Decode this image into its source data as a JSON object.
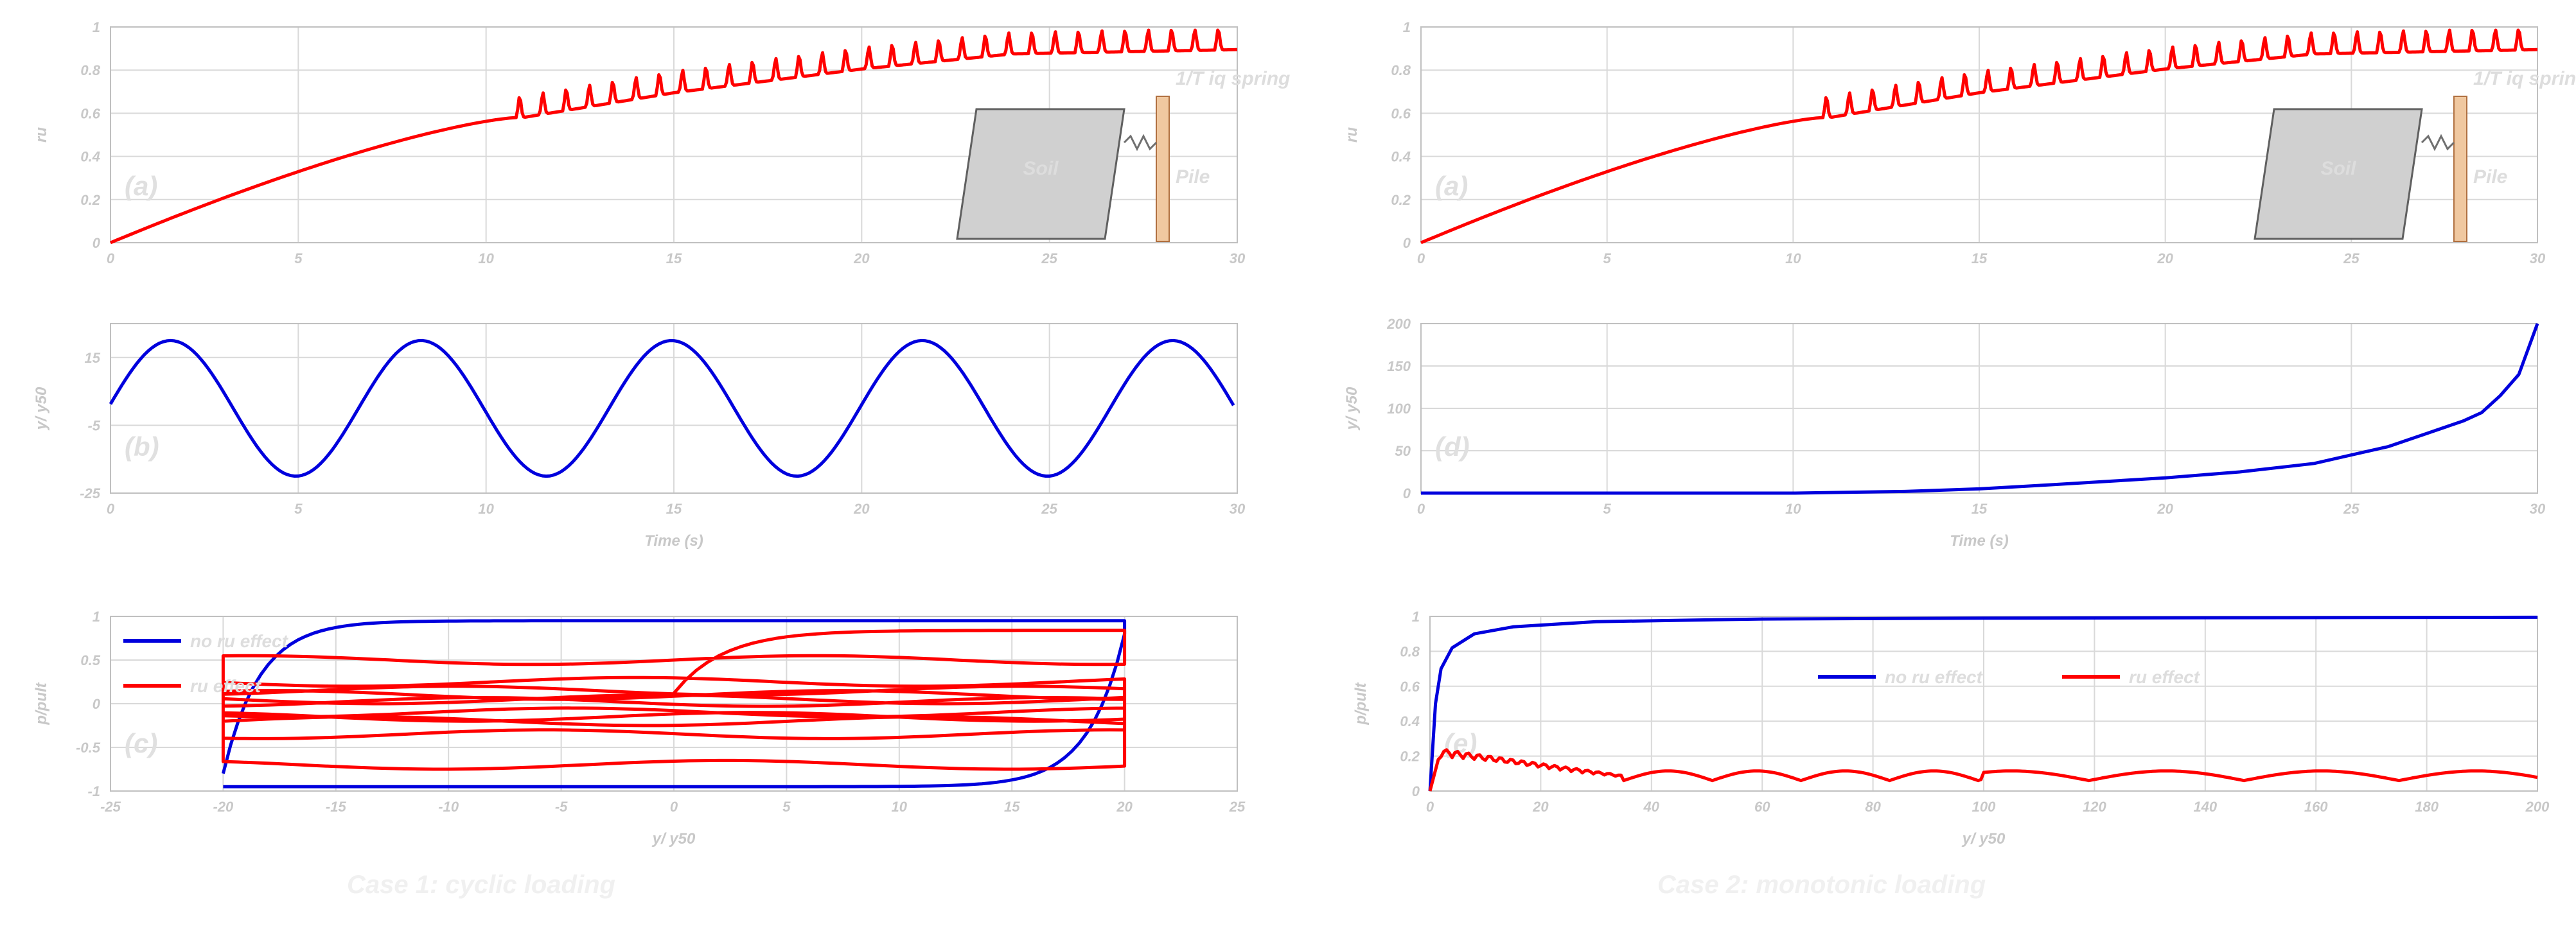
{
  "figure": {
    "case1_title": "Case 1: cyclic loading",
    "case2_title": "Case 2: monotonic loading"
  },
  "inset": {
    "spring_label": "1/T iq spring",
    "soil_label": "Soil",
    "pile_label": "Pile"
  },
  "colors": {
    "ru": "#ff0000",
    "disp": "#0000dd",
    "noru": "#0000dd",
    "grid": "#d9d9d9"
  },
  "chart_data": [
    {
      "id": "a",
      "type": "line",
      "panel_tag": "(a)",
      "xlabel": "",
      "ylabel": "ru",
      "xlim": [
        0,
        30
      ],
      "ylim": [
        0,
        1
      ],
      "xticks": [
        0,
        5,
        10,
        15,
        20,
        25,
        30
      ],
      "yticks": [
        0,
        0.2,
        0.4,
        0.6,
        0.8,
        1
      ],
      "ytick_labels": [
        "0",
        "0.2",
        "0.4",
        "0.6",
        "0.8",
        "1"
      ],
      "series": [
        {
          "style": "ru",
          "kind": "ru_cyclic",
          "monotonic_rise": {
            "x_end": 10.8,
            "y_end": 0.58
          },
          "cyclic": {
            "x_start": 10.8,
            "x_end": 30,
            "period": 0.62,
            "amplitude": 0.05,
            "envelope": [
              [
                10.8,
                0.6
              ],
              [
                15,
                0.72
              ],
              [
                20,
                0.83
              ],
              [
                24,
                0.9
              ],
              [
                30,
                0.92
              ]
            ]
          }
        }
      ]
    },
    {
      "id": "b",
      "type": "line",
      "panel_tag": "(b)",
      "xlabel": "Time (s)",
      "ylabel": "y/ y50",
      "xlim": [
        0,
        30
      ],
      "ylim": [
        -25,
        25
      ],
      "xticks": [
        0,
        5,
        10,
        15,
        20,
        25,
        30
      ],
      "yticks": [
        -25,
        -5,
        15
      ],
      "ytick_labels": [
        "-25",
        "-5",
        "15"
      ],
      "series": [
        {
          "style": "disp",
          "kind": "sine",
          "amplitude": 20,
          "period": 6.67,
          "phase_x": 1.6,
          "x_range": [
            0,
            30
          ]
        }
      ]
    },
    {
      "id": "c",
      "type": "line",
      "panel_tag": "(c)",
      "xlabel": "y/ y50",
      "ylabel": "p/pult",
      "xlim": [
        -25,
        25
      ],
      "ylim": [
        -1,
        1
      ],
      "xticks": [
        -25,
        -20,
        -15,
        -10,
        -5,
        0,
        5,
        10,
        15,
        20,
        25
      ],
      "yticks": [
        -1,
        -0.5,
        0,
        0.5,
        1
      ],
      "ytick_labels": [
        "-1",
        "-0.5",
        "0",
        "0.5",
        "1"
      ],
      "legend": {
        "position": "top-left",
        "entries": [
          {
            "label": "no ru effect",
            "style": "noru"
          },
          {
            "label": "ru effect",
            "style": "ru"
          }
        ]
      },
      "series": [
        {
          "style": "noru",
          "kind": "hysteresis_noru"
        },
        {
          "style": "ru",
          "kind": "hysteresis_ru",
          "levels": [
            0.5,
            -0.7,
            0.25,
            -0.35,
            0.15,
            -0.2,
            0.1,
            -0.15,
            0.05,
            -0.1,
            0.02
          ]
        }
      ]
    },
    {
      "id": "d",
      "type": "line",
      "panel_tag": "(a)",
      "xlabel": "",
      "ylabel": "ru",
      "xlim": [
        0,
        30
      ],
      "ylim": [
        0,
        1
      ],
      "xticks": [
        0,
        5,
        10,
        15,
        20,
        25,
        30
      ],
      "yticks": [
        0,
        0.2,
        0.4,
        0.6,
        0.8,
        1
      ],
      "ytick_labels": [
        "0",
        "0.2",
        "0.4",
        "0.6",
        "0.8",
        "1"
      ],
      "series": [
        {
          "style": "ru",
          "kind": "ru_cyclic",
          "monotonic_rise": {
            "x_end": 10.8,
            "y_end": 0.58
          },
          "cyclic": {
            "x_start": 10.8,
            "x_end": 30,
            "period": 0.62,
            "amplitude": 0.05,
            "envelope": [
              [
                10.8,
                0.6
              ],
              [
                15,
                0.72
              ],
              [
                20,
                0.83
              ],
              [
                24,
                0.9
              ],
              [
                30,
                0.92
              ]
            ]
          }
        }
      ]
    },
    {
      "id": "e",
      "type": "line",
      "panel_tag": "(d)",
      "xlabel": "Time (s)",
      "ylabel": "y/ y50",
      "xlim": [
        0,
        30
      ],
      "ylim": [
        0,
        200
      ],
      "xticks": [
        0,
        5,
        10,
        15,
        20,
        25,
        30
      ],
      "yticks": [
        0,
        50,
        100,
        150,
        200
      ],
      "ytick_labels": [
        "0",
        "50",
        "100",
        "150",
        "200"
      ],
      "series": [
        {
          "style": "disp",
          "kind": "points",
          "points": [
            [
              0,
              0
            ],
            [
              10,
              0
            ],
            [
              13,
              2
            ],
            [
              15,
              5
            ],
            [
              17,
              10
            ],
            [
              20,
              18
            ],
            [
              22,
              25
            ],
            [
              24,
              35
            ],
            [
              25,
              45
            ],
            [
              26,
              55
            ],
            [
              27,
              70
            ],
            [
              28,
              85
            ],
            [
              28.5,
              95
            ],
            [
              29,
              115
            ],
            [
              29.5,
              140
            ],
            [
              30,
              200
            ]
          ]
        }
      ]
    },
    {
      "id": "f",
      "type": "line",
      "panel_tag": "(e)",
      "xlabel": "y/ y50",
      "ylabel": "p/pult",
      "xlim": [
        0,
        200
      ],
      "ylim": [
        0,
        1
      ],
      "xticks": [
        0,
        20,
        40,
        60,
        80,
        100,
        120,
        140,
        160,
        180,
        200
      ],
      "yticks": [
        0,
        0.2,
        0.4,
        0.6,
        0.8,
        1
      ],
      "ytick_labels": [
        "0",
        "0.2",
        "0.4",
        "0.6",
        "0.8",
        "1"
      ],
      "legend": {
        "position": "center",
        "entries": [
          {
            "label": "no ru effect",
            "style": "noru"
          },
          {
            "label": "ru effect",
            "style": "ru"
          }
        ]
      },
      "series": [
        {
          "style": "noru",
          "kind": "points",
          "points": [
            [
              0,
              0
            ],
            [
              1,
              0.5
            ],
            [
              2,
              0.7
            ],
            [
              4,
              0.82
            ],
            [
              8,
              0.9
            ],
            [
              15,
              0.94
            ],
            [
              30,
              0.97
            ],
            [
              60,
              0.985
            ],
            [
              100,
              0.99
            ],
            [
              200,
              0.995
            ]
          ]
        },
        {
          "style": "ru",
          "kind": "ru_monotonic"
        }
      ]
    }
  ]
}
